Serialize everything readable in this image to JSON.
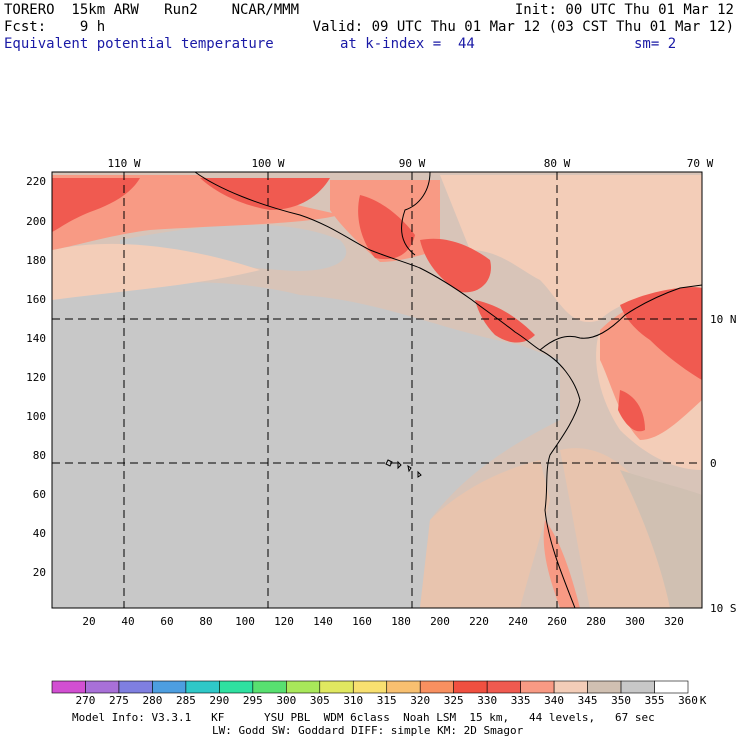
{
  "header": {
    "line1_left": "TORERO  15km ARW   Run2    NCAR/MMM",
    "line1_right": "Init: 00 UTC Thu 01 Mar 12",
    "line2_left": "Fcst:    9 h",
    "line2_right": "Valid: 09 UTC Thu 01 Mar 12 (03 CST Thu 01 Mar 12)",
    "line3_left": "Equivalent potential temperature",
    "line3_mid": "at k-index =  44",
    "line3_right": "sm= 2"
  },
  "map": {
    "lon_labels": [
      "110 W",
      "100 W",
      "90 W",
      "80 W",
      "70 W"
    ],
    "lat_labels": [
      "10 N",
      "0",
      "10 S"
    ],
    "y_ticks": [
      "220",
      "200",
      "180",
      "160",
      "140",
      "120",
      "100",
      "80",
      "60",
      "40",
      "20"
    ],
    "x_ticks": [
      "20",
      "40",
      "60",
      "80",
      "100",
      "120",
      "140",
      "160",
      "180",
      "200",
      "220",
      "240",
      "260",
      "280",
      "300",
      "320"
    ]
  },
  "colorbar": {
    "colors": [
      "#d24fd2",
      "#a870d8",
      "#7f7fe0",
      "#4d9ee0",
      "#2fc8c8",
      "#2fe0a0",
      "#58e070",
      "#a8e85a",
      "#e0e860",
      "#f8e070",
      "#f8c070",
      "#f89060",
      "#f05040",
      "#f05a50",
      "#f89a84",
      "#f3cdb8",
      "#d0c0b2",
      "#c8c8c8",
      "#ffffff"
    ],
    "labels": [
      "270",
      "275",
      "280",
      "285",
      "290",
      "295",
      "300",
      "305",
      "310",
      "315",
      "320",
      "325",
      "330",
      "335",
      "340",
      "345",
      "350",
      "355",
      "360"
    ],
    "unit": "K"
  },
  "footer": {
    "line1": "Model Info: V3.3.1   KF      YSU PBL  WDM 6class  Noah LSM  15 km,   44 levels,   67 sec",
    "line2": "LW: Godd SW: Goddard DIFF: simple KM: 2D Smagor"
  },
  "icons": [
    "coastline-icon"
  ]
}
